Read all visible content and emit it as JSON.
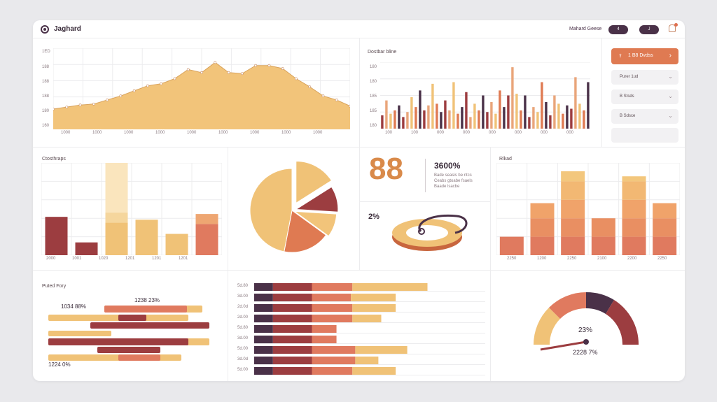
{
  "header": {
    "title": "Jaghard",
    "link": "Mahard Geese",
    "pill_left": "4",
    "pill_right": "J"
  },
  "area_panel": {
    "ylabels": [
      "1ED",
      "188",
      "188",
      "188",
      "180",
      "160"
    ],
    "xlabels": [
      "1000",
      "1000",
      "1000",
      "1000",
      "1000",
      "1000",
      "1000",
      "1000",
      "1000"
    ]
  },
  "bar_panel": {
    "title": "Dostbar bline",
    "ylabels": [
      "180",
      "180",
      "185",
      "185",
      "180"
    ],
    "xlabels": [
      "100",
      "100",
      "000",
      "000",
      "000",
      "000",
      "000",
      "000"
    ]
  },
  "right_panel": {
    "primary_icon": "upload-icon",
    "primary_label": "1 B8 Dvdss",
    "select_1": "Purer 1ud",
    "select_2": "B Stsds",
    "select_3": "B Sdsce"
  },
  "column_panel": {
    "title": "Ctosthraps",
    "xlabels": [
      "2000",
      "1001",
      "1020",
      "1201",
      "1201",
      "1201"
    ]
  },
  "stat_panel": {
    "big_number": "88",
    "percent_value": "3600%",
    "desc_line1": "Bade seasis be ntcs",
    "desc_line2": "Ceabs gtoabe fsaels",
    "desc_line3": "Baade lsacbe",
    "ring_percent": "2%"
  },
  "stacked_panel": {
    "title": "Rlkad",
    "xlabels": [
      "2250",
      "1200",
      "2250",
      "2100",
      "2200",
      "2250"
    ]
  },
  "gantt_panel": {
    "title": "Puted Fory",
    "label_top_left": "1034 88%",
    "label_top_right": "1238 23%",
    "label_bottom": "1224 0%"
  },
  "hbar_panel": {
    "labels": [
      "5d.80",
      "3d.00",
      "2d.0d",
      "2d.00",
      "5d.80",
      "3d.00",
      "5d.00",
      "3d.0d",
      "5d.00"
    ]
  },
  "gauge_panel": {
    "value": "23%",
    "caption": "2228 7%"
  },
  "chart_data": [
    {
      "type": "area",
      "x": [
        1,
        2,
        3,
        4,
        5,
        6,
        7,
        8,
        9,
        10,
        11,
        12,
        13,
        14,
        15,
        16,
        17,
        18,
        19,
        20,
        21,
        22,
        23
      ],
      "values": [
        40,
        44,
        48,
        50,
        58,
        66,
        76,
        86,
        90,
        100,
        118,
        112,
        132,
        112,
        110,
        126,
        126,
        120,
        100,
        84,
        66,
        58,
        46
      ],
      "ylim": [
        0,
        160
      ],
      "grid": true
    },
    {
      "type": "bar",
      "categories": [
        "1",
        "2",
        "3",
        "4",
        "5",
        "6",
        "7",
        "8",
        "9",
        "10",
        "11",
        "12",
        "13",
        "14",
        "15",
        "16",
        "17",
        "18",
        "19",
        "20",
        "21",
        "22",
        "23",
        "24",
        "25",
        "26",
        "27",
        "28",
        "29",
        "30",
        "31",
        "32",
        "33",
        "34",
        "35",
        "36",
        "37",
        "38",
        "39",
        "40",
        "41",
        "42",
        "43",
        "44",
        "45",
        "46",
        "47",
        "48",
        "49",
        "50"
      ],
      "values": [
        16,
        34,
        18,
        22,
        28,
        14,
        20,
        38,
        26,
        46,
        22,
        28,
        54,
        30,
        20,
        34,
        22,
        56,
        18,
        26,
        44,
        14,
        30,
        22,
        40,
        20,
        32,
        18,
        46,
        26,
        40,
        74,
        42,
        22,
        40,
        14,
        26,
        20,
        56,
        32,
        16,
        40,
        30,
        18,
        28,
        24,
        62,
        30,
        22,
        56
      ],
      "ylim": [
        0,
        80
      ],
      "grid": true
    },
    {
      "type": "bar",
      "categories": [
        "2000",
        "1001",
        "1020",
        "1201",
        "1201",
        "1201"
      ],
      "series": [
        {
          "values": [
            54,
            18,
            46,
            50,
            30,
            44
          ]
        },
        {
          "values": [
            0,
            0,
            14,
            0,
            0,
            14
          ]
        },
        {
          "values": [
            0,
            0,
            86,
            0,
            0,
            0
          ]
        }
      ],
      "ylim": [
        0,
        130
      ],
      "grid": true
    },
    {
      "type": "pie",
      "values": [
        16,
        10,
        9,
        18,
        47
      ]
    },
    {
      "type": "bar",
      "categories": [
        "2250",
        "1200",
        "2250",
        "2100",
        "2200",
        "2250"
      ],
      "series": [
        {
          "values": [
            22,
            22,
            22,
            22,
            22,
            22
          ]
        },
        {
          "values": [
            0,
            22,
            22,
            22,
            22,
            22
          ]
        },
        {
          "values": [
            0,
            18,
            22,
            0,
            22,
            18
          ]
        },
        {
          "values": [
            0,
            0,
            22,
            0,
            22,
            0
          ]
        },
        {
          "values": [
            0,
            0,
            12,
            0,
            6,
            0
          ]
        }
      ],
      "ylim": [
        0,
        110
      ],
      "grid": true
    },
    {
      "type": "bar",
      "categories": [
        "5d.80",
        "3d.00",
        "2d.0d",
        "2d.00",
        "5d.80",
        "3d.00",
        "5d.00",
        "3d.0d",
        "5d.00"
      ],
      "series": [
        {
          "values": [
            26,
            26,
            26,
            26,
            26,
            26,
            26,
            26,
            26
          ]
        },
        {
          "values": [
            54,
            54,
            54,
            54,
            54,
            54,
            54,
            54,
            54
          ]
        },
        {
          "values": [
            56,
            54,
            56,
            56,
            34,
            34,
            60,
            60,
            56
          ]
        },
        {
          "values": [
            104,
            62,
            60,
            40,
            0,
            0,
            72,
            32,
            60
          ]
        }
      ],
      "xlim": [
        0,
        320
      ]
    }
  ]
}
